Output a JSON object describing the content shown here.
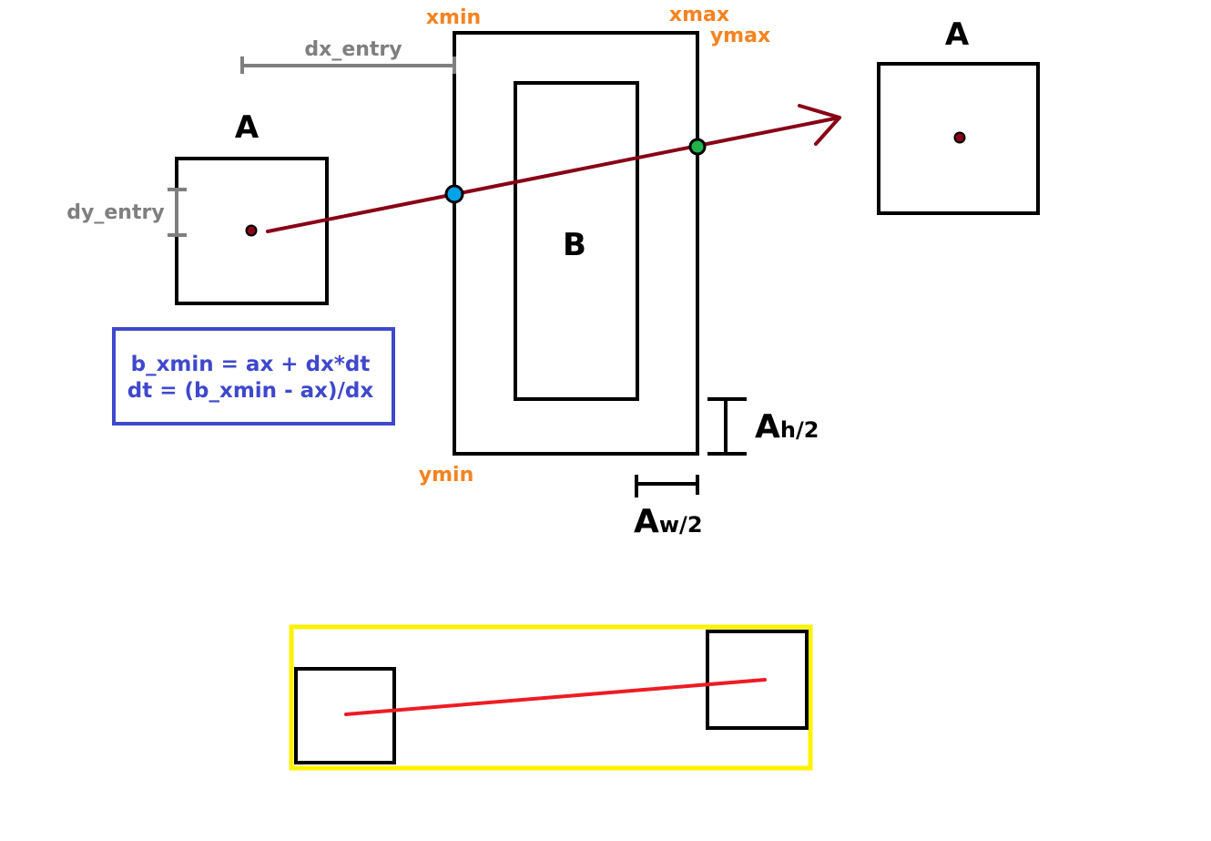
{
  "labels": {
    "box_a_left": "A",
    "box_a_right": "A",
    "box_b": "B",
    "xmin": "xmin",
    "xmax": "xmax",
    "ymax": "ymax",
    "ymin": "ymin",
    "dx_entry": "dx_entry",
    "dy_entry": "dy_entry",
    "ah_main": "A",
    "ah_sub": "h/2",
    "aw_main": "A",
    "aw_sub": "w/2"
  },
  "formula": {
    "line1": "b_xmin = ax + dx*dt",
    "line2": "dt = (b_xmin - ax)/dx"
  },
  "colors": {
    "outline": "#000000",
    "trajectory": "#880015",
    "bounds_label": "#f58220",
    "entry_label": "#7f7f7f",
    "formula_text": "#3f48cc",
    "formula_border": "#3f48cc",
    "entry_point": "#00a2e8",
    "exit_point": "#22b14c",
    "broadphase_box": "#fff200",
    "broadphase_line": "#ed1c24"
  }
}
